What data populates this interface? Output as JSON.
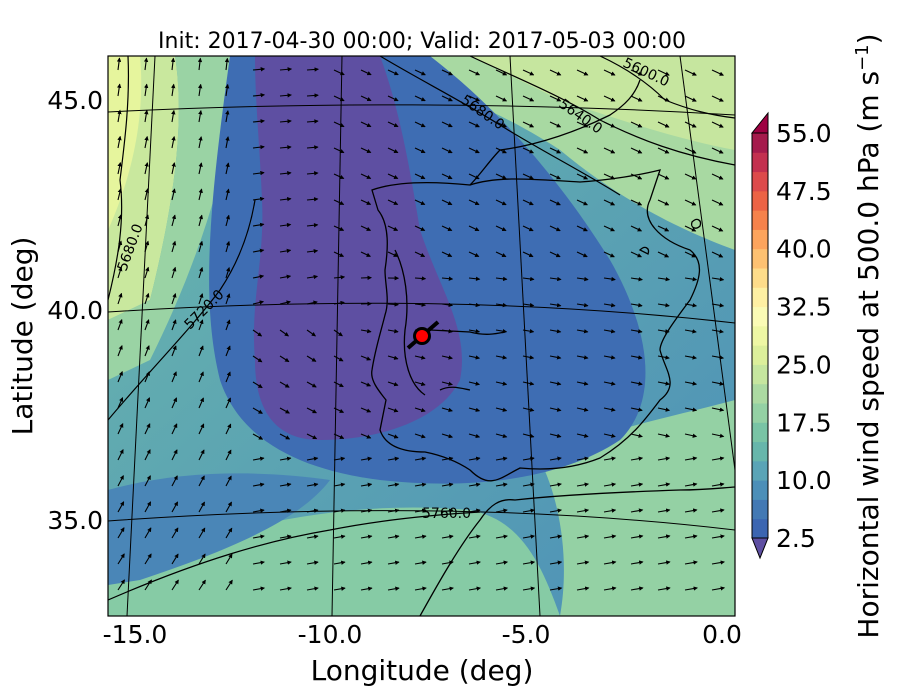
{
  "title": "Init: 2017-04-30 00:00; Valid: 2017-05-03 00:00",
  "axes": {
    "xlabel": "Longitude (deg)",
    "ylabel": "Latitude (deg)",
    "xticks": [
      "-15.0",
      "-10.0",
      "-5.0",
      "0.0"
    ],
    "yticks": [
      "45.0",
      "40.0",
      "35.0"
    ],
    "xlim": [
      -15.9,
      0.3
    ],
    "ylim": [
      32.7,
      46.1
    ]
  },
  "colorbar": {
    "label": "Horizontal wind speed at 500.0 hPa (m s",
    "label_unit_exponent": "−1",
    "label_close": ")",
    "ticks": [
      "55.0",
      "47.5",
      "40.0",
      "32.5",
      "25.0",
      "17.5",
      "10.0",
      "2.5"
    ],
    "range": [
      2.5,
      55.0
    ],
    "colors": [
      "#3b65b1",
      "#4379b4",
      "#4c8fb8",
      "#5aa4b6",
      "#67b6ab",
      "#79c4a5",
      "#94d1a4",
      "#acdaa2",
      "#c6e69f",
      "#dcef9b",
      "#eef7a4",
      "#fafbb5",
      "#fef0a3",
      "#fedc8a",
      "#fdc172",
      "#fca45d",
      "#f6824b",
      "#ec6345",
      "#dc4a4b",
      "#c3304f",
      "#a51b4c"
    ],
    "extend_low_color": "#5e4fa2",
    "extend_high_color": "#9e0142"
  },
  "contour_labels": [
    "5680.0",
    "5720.0",
    "5760.0",
    "5680.0",
    "5640.0",
    "5600.0"
  ],
  "marker": {
    "lon": -7.6,
    "lat": 39.35,
    "color": "#ff0000"
  },
  "colors": {
    "deep": "#5e4fa2",
    "blue": "#3e6db3",
    "teal": "#5aa5b6",
    "green": "#8fd0a4",
    "yellow": "#e6f59d"
  }
}
